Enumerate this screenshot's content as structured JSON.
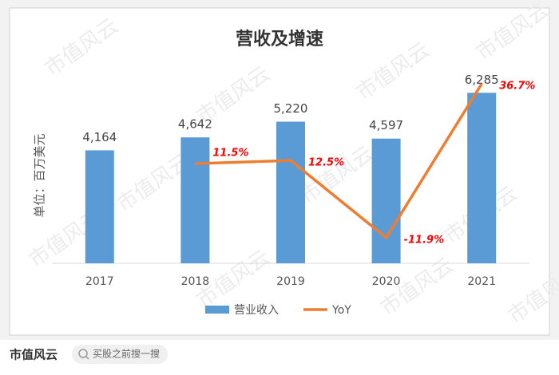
{
  "chart_data": {
    "type": "bar_line",
    "title": "营收及增速",
    "y_label": "单位：百万美元",
    "categories": [
      "2017",
      "2018",
      "2019",
      "2020",
      "2021"
    ],
    "series": [
      {
        "name": "营业收入",
        "type": "bar",
        "color": "#5b9bd5",
        "values": [
          4164,
          4642,
          5220,
          4597,
          6285
        ],
        "value_labels": [
          "4,164",
          "4,642",
          "5,220",
          "4,597",
          "6,285"
        ]
      },
      {
        "name": "YoY",
        "type": "line",
        "axis": "y2",
        "color": "#ed7d31",
        "values": [
          null,
          11.5,
          12.5,
          -11.9,
          36.7
        ],
        "value_labels": [
          null,
          "11.5%",
          "12.5%",
          "-11.9%",
          "36.7%"
        ]
      }
    ],
    "ylim": [
      0,
      7000
    ],
    "y2lim": [
      -20,
      40
    ],
    "legend": "bottom"
  },
  "watermark": "市值风云",
  "footer": {
    "logo": "市值风云",
    "search": "买股之前搜一搜"
  }
}
